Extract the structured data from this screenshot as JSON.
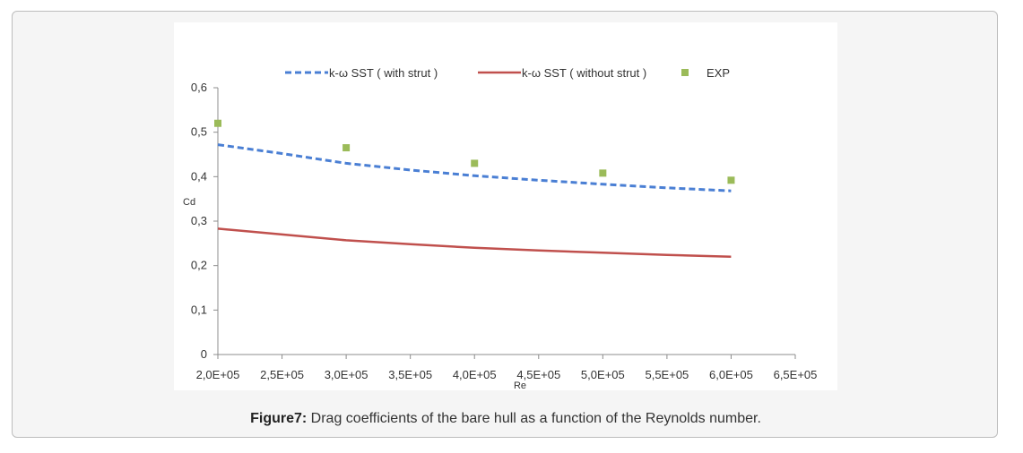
{
  "caption": {
    "label": "Figure7:",
    "text": " Drag coefficients of the bare hull as a function of the Reynolds number."
  },
  "chart_data": {
    "type": "line",
    "title": "",
    "xlabel": "Re",
    "ylabel": "Cd",
    "xlim": [
      200000,
      650000
    ],
    "ylim": [
      0,
      0.6
    ],
    "x_ticks": [
      200000,
      250000,
      300000,
      350000,
      400000,
      450000,
      500000,
      550000,
      600000,
      650000
    ],
    "x_tick_labels": [
      "2,0E+05",
      "2,5E+05",
      "3,0E+05",
      "3,5E+05",
      "4,0E+05",
      "4,5E+05",
      "5,0E+05",
      "5,5E+05",
      "6,0E+05",
      "6,5E+05"
    ],
    "y_ticks": [
      0,
      0.1,
      0.2,
      0.3,
      0.4,
      0.5,
      0.6
    ],
    "y_tick_labels": [
      "0",
      "0,1",
      "0,2",
      "0,3",
      "0,4",
      "0,5",
      "0,6"
    ],
    "grid": false,
    "legend_position": "top",
    "series": [
      {
        "name": "k-ω SST (  with strut  )",
        "style": "dashed",
        "color": "#4a7fd4",
        "x": [
          200000,
          250000,
          300000,
          350000,
          400000,
          450000,
          500000,
          550000,
          600000
        ],
        "y": [
          0.472,
          0.452,
          0.43,
          0.415,
          0.402,
          0.392,
          0.383,
          0.375,
          0.368
        ]
      },
      {
        "name": "k-ω SST (  without strut  )",
        "style": "solid",
        "color": "#c0504d",
        "x": [
          200000,
          250000,
          300000,
          350000,
          400000,
          450000,
          500000,
          550000,
          600000
        ],
        "y": [
          0.283,
          0.27,
          0.257,
          0.248,
          0.24,
          0.234,
          0.229,
          0.224,
          0.22
        ]
      },
      {
        "name": "EXP",
        "style": "markers",
        "color": "#9bbb59",
        "x": [
          200000,
          300000,
          400000,
          500000,
          600000
        ],
        "y": [
          0.52,
          0.465,
          0.43,
          0.408,
          0.392
        ]
      }
    ]
  }
}
